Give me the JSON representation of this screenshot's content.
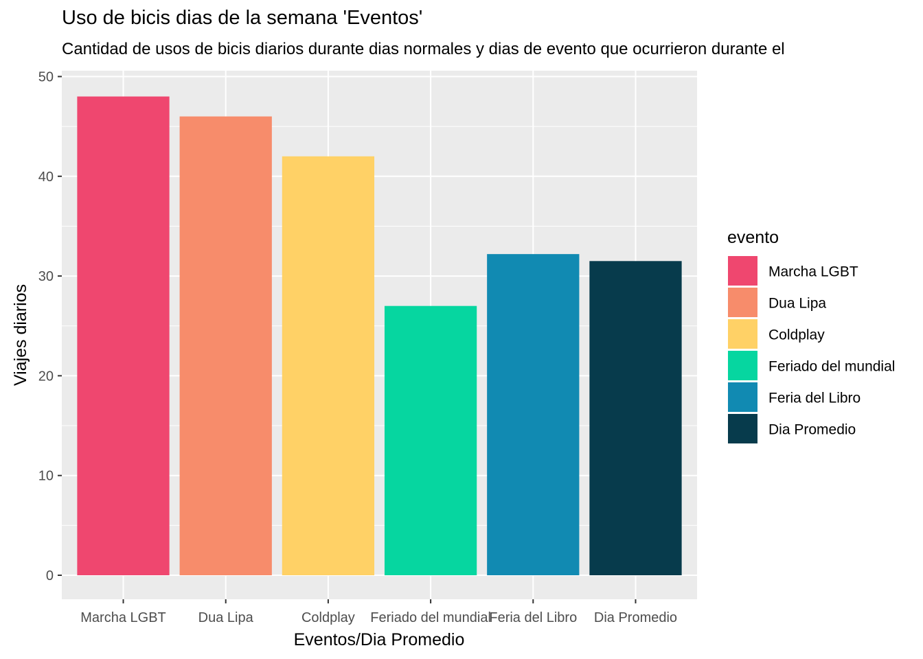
{
  "chart_data": {
    "type": "bar",
    "title": "Uso de bicis dias de la semana 'Eventos'",
    "subtitle": "Cantidad de usos de bicis diarios durante dias normales y dias de evento que ocurrieron durante el",
    "xlabel": "Eventos/Dia Promedio",
    "ylabel": "Viajes diarios",
    "categories": [
      "Marcha LGBT",
      "Dua Lipa",
      "Coldplay",
      "Feriado del mundial",
      "Feria del Libro",
      "Dia Promedio"
    ],
    "values": [
      48,
      46,
      42,
      27,
      32.2,
      31.5
    ],
    "colors": [
      "#EF476F",
      "#F78C6B",
      "#FFD166",
      "#06D6A0",
      "#118AB2",
      "#073B4C"
    ],
    "ylim": [
      0,
      50
    ],
    "yticks": [
      0,
      10,
      20,
      30,
      40,
      50
    ],
    "grid": true,
    "legend": {
      "title": "evento",
      "position": "right",
      "entries": [
        "Marcha LGBT",
        "Dua Lipa",
        "Coldplay",
        "Feriado del mundial",
        "Feria del Libro",
        "Dia Promedio"
      ]
    }
  }
}
